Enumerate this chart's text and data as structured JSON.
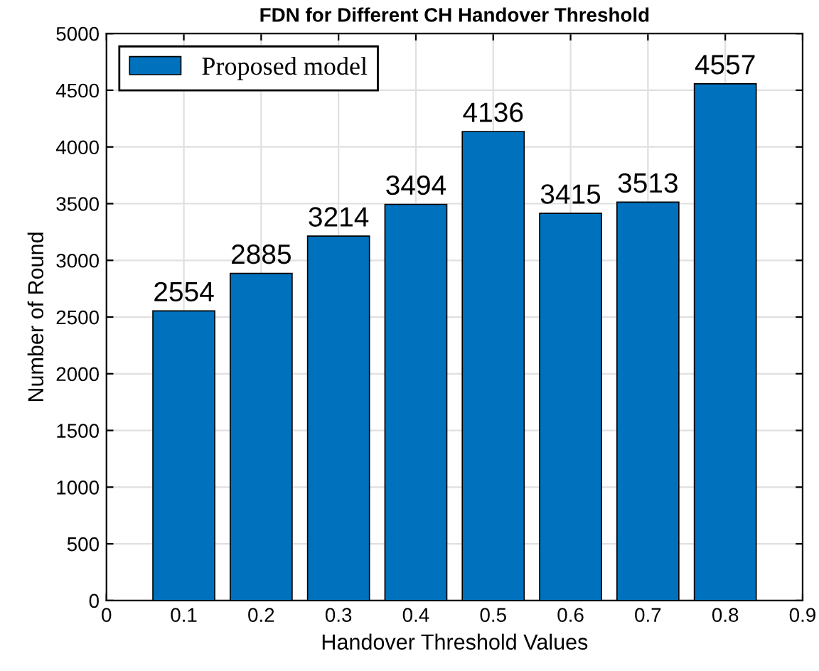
{
  "chart_data": {
    "type": "bar",
    "title": "FDN for Different CH Handover Threshold",
    "xlabel": "Handover Threshold Values",
    "ylabel": "Number of Round",
    "x": [
      0.1,
      0.2,
      0.3,
      0.4,
      0.5,
      0.6,
      0.7,
      0.8
    ],
    "series": [
      {
        "name": "Proposed model",
        "color": "#0072bd",
        "values": [
          2554,
          2885,
          3214,
          3494,
          4136,
          3415,
          3513,
          4557
        ]
      }
    ],
    "xlim": [
      0,
      0.9
    ],
    "xticks": [
      0,
      0.1,
      0.2,
      0.3,
      0.4,
      0.5,
      0.6,
      0.7,
      0.8,
      0.9
    ],
    "ylim": [
      0,
      5000
    ],
    "yticks": [
      0,
      500,
      1000,
      1500,
      2000,
      2500,
      3000,
      3500,
      4000,
      4500,
      5000
    ],
    "grid": true,
    "legend": "top left",
    "data_labels": true
  }
}
